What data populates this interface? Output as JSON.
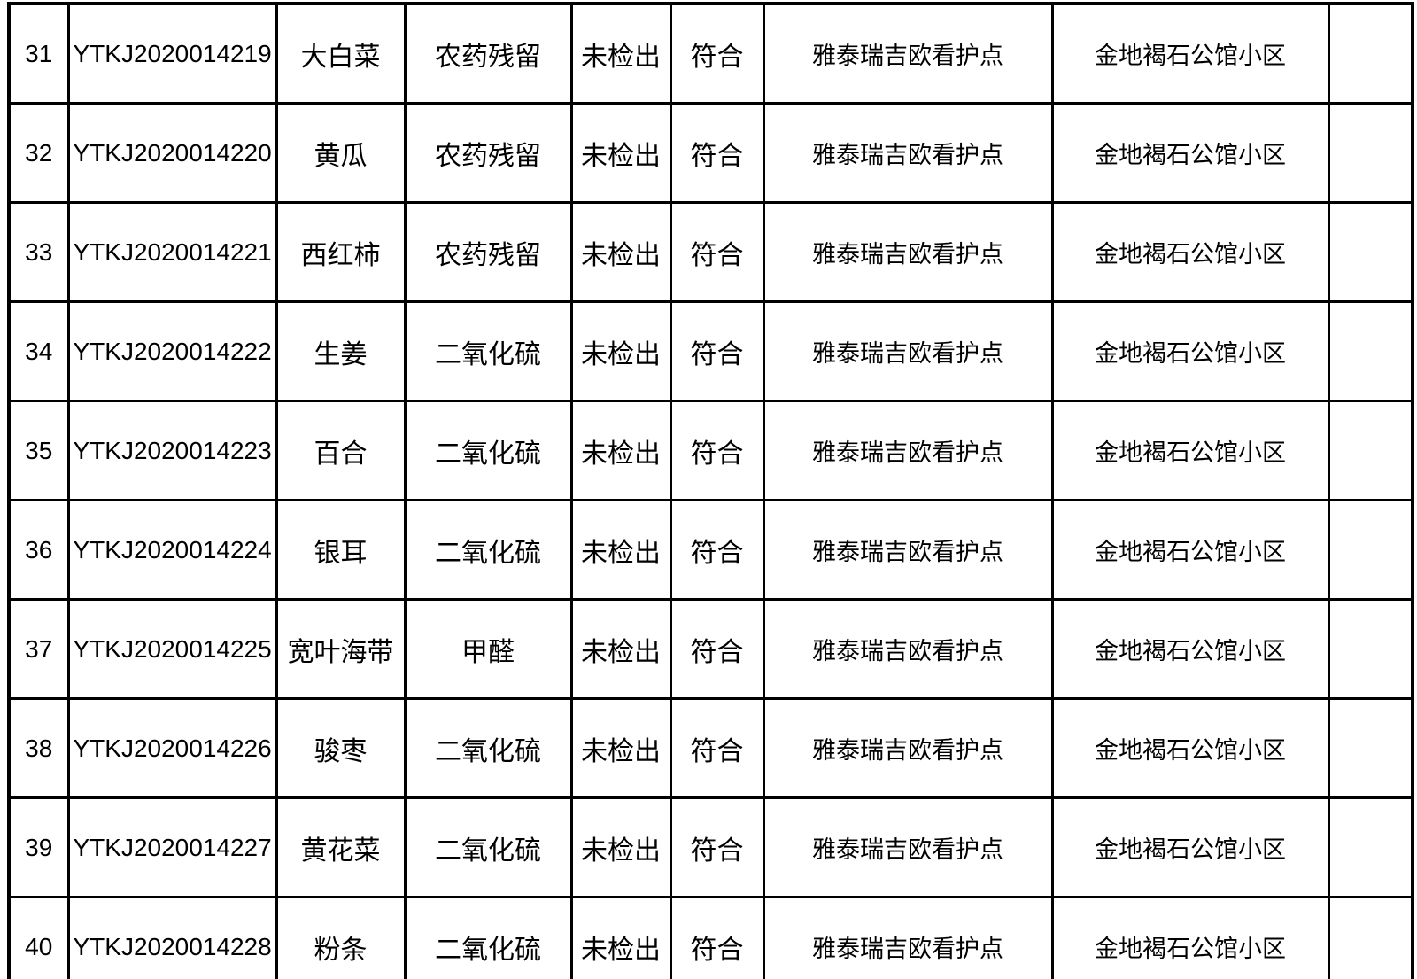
{
  "table": {
    "description_columns": [
      "row_number",
      "sample_id",
      "sample_name",
      "test_item",
      "test_result",
      "conclusion",
      "sampling_site",
      "sampling_address",
      "remark"
    ],
    "rows": [
      {
        "no": "31",
        "id": "YTKJ2020014219",
        "name": "大白菜",
        "item": "农药残留",
        "result": "未检出",
        "conclusion": "符合",
        "site": "雅泰瑞吉欧看护点",
        "address": "金地褐石公馆小区",
        "note": ""
      },
      {
        "no": "32",
        "id": "YTKJ2020014220",
        "name": "黄瓜",
        "item": "农药残留",
        "result": "未检出",
        "conclusion": "符合",
        "site": "雅泰瑞吉欧看护点",
        "address": "金地褐石公馆小区",
        "note": ""
      },
      {
        "no": "33",
        "id": "YTKJ2020014221",
        "name": "西红柿",
        "item": "农药残留",
        "result": "未检出",
        "conclusion": "符合",
        "site": "雅泰瑞吉欧看护点",
        "address": "金地褐石公馆小区",
        "note": ""
      },
      {
        "no": "34",
        "id": "YTKJ2020014222",
        "name": "生姜",
        "item": "二氧化硫",
        "result": "未检出",
        "conclusion": "符合",
        "site": "雅泰瑞吉欧看护点",
        "address": "金地褐石公馆小区",
        "note": ""
      },
      {
        "no": "35",
        "id": "YTKJ2020014223",
        "name": "百合",
        "item": "二氧化硫",
        "result": "未检出",
        "conclusion": "符合",
        "site": "雅泰瑞吉欧看护点",
        "address": "金地褐石公馆小区",
        "note": ""
      },
      {
        "no": "36",
        "id": "YTKJ2020014224",
        "name": "银耳",
        "item": "二氧化硫",
        "result": "未检出",
        "conclusion": "符合",
        "site": "雅泰瑞吉欧看护点",
        "address": "金地褐石公馆小区",
        "note": ""
      },
      {
        "no": "37",
        "id": "YTKJ2020014225",
        "name": "宽叶海带",
        "item": "甲醛",
        "result": "未检出",
        "conclusion": "符合",
        "site": "雅泰瑞吉欧看护点",
        "address": "金地褐石公馆小区",
        "note": ""
      },
      {
        "no": "38",
        "id": "YTKJ2020014226",
        "name": "骏枣",
        "item": "二氧化硫",
        "result": "未检出",
        "conclusion": "符合",
        "site": "雅泰瑞吉欧看护点",
        "address": "金地褐石公馆小区",
        "note": ""
      },
      {
        "no": "39",
        "id": "YTKJ2020014227",
        "name": "黄花菜",
        "item": "二氧化硫",
        "result": "未检出",
        "conclusion": "符合",
        "site": "雅泰瑞吉欧看护点",
        "address": "金地褐石公馆小区",
        "note": ""
      },
      {
        "no": "40",
        "id": "YTKJ2020014228",
        "name": "粉条",
        "item": "二氧化硫",
        "result": "未检出",
        "conclusion": "符合",
        "site": "雅泰瑞吉欧看护点",
        "address": "金地褐石公馆小区",
        "note": ""
      }
    ],
    "colors": {
      "border": "#000000",
      "text": "#000000",
      "background": "#ffffff"
    }
  }
}
